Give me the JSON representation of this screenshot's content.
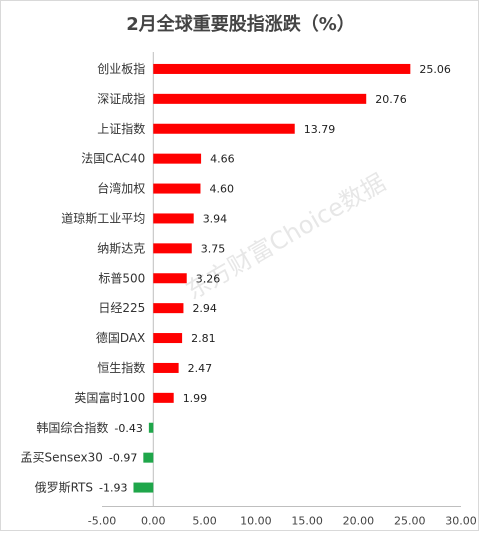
{
  "chart_data": {
    "type": "bar",
    "orientation": "horizontal",
    "title": "2月全球重要股指涨跌（%）",
    "categories": [
      "创业板指",
      "深证成指",
      "上证指数",
      "法国CAC40",
      "台湾加权",
      "道琼斯工业平均",
      "纳斯达克",
      "标普500",
      "日经225",
      "德国DAX",
      "恒生指数",
      "英国富时100",
      "韩国综合指数",
      "孟买Sensex30",
      "俄罗斯RTS"
    ],
    "values": [
      25.06,
      20.76,
      13.79,
      4.66,
      4.6,
      3.94,
      3.75,
      3.26,
      2.94,
      2.81,
      2.47,
      1.99,
      -0.43,
      -0.97,
      -1.93
    ],
    "value_labels": [
      "25.06",
      "20.76",
      "13.79",
      "4.66",
      "4.60",
      "3.94",
      "3.75",
      "3.26",
      "2.94",
      "2.81",
      "2.47",
      "1.99",
      "-0.43",
      "-0.97",
      "-1.93"
    ],
    "xlim": [
      -5,
      30
    ],
    "xticks": [
      "-5.00",
      "0.00",
      "5.00",
      "10.00",
      "15.00",
      "20.00",
      "25.00",
      "30.00"
    ],
    "xtick_values": [
      -5,
      0,
      5,
      10,
      15,
      20,
      25,
      30
    ],
    "colors": {
      "positive": "#ff0000",
      "negative": "#1fa64a",
      "axis": "#bfbfbf"
    },
    "grid": false,
    "watermark": "东方财富Choice数据"
  }
}
